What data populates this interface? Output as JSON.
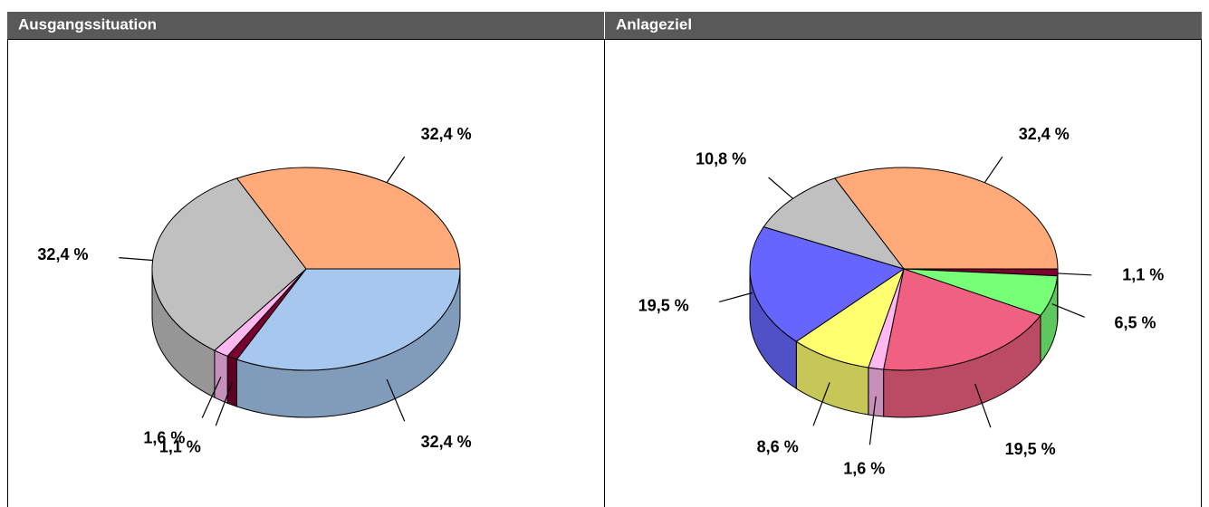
{
  "chart_data": [
    {
      "type": "pie",
      "title": "Ausgangssituation",
      "values": [
        32.4,
        32.4,
        1.1,
        1.6,
        32.4
      ],
      "value_labels": [
        "32,4 %",
        "32,4 %",
        "1,1 %",
        "1,6 %",
        "32,4 %"
      ],
      "colors": [
        "#ffaa78",
        "#a6c8ee",
        "#7a0030",
        "#ffb8f0",
        "#c0c0c0"
      ]
    },
    {
      "type": "pie",
      "title": "Anlageziel",
      "values": [
        32.4,
        1.1,
        6.5,
        19.5,
        1.6,
        8.6,
        19.5,
        10.8
      ],
      "value_labels": [
        "32,4 %",
        "1,1 %",
        "6,5 %",
        "19,5 %",
        "1,6 %",
        "8,6 %",
        "19,5 %",
        "10,8 %"
      ],
      "colors": [
        "#ffaa78",
        "#7a0030",
        "#78ff78",
        "#f06080",
        "#ffb8f0",
        "#ffff70",
        "#6666ff",
        "#c0c0c0"
      ]
    }
  ]
}
